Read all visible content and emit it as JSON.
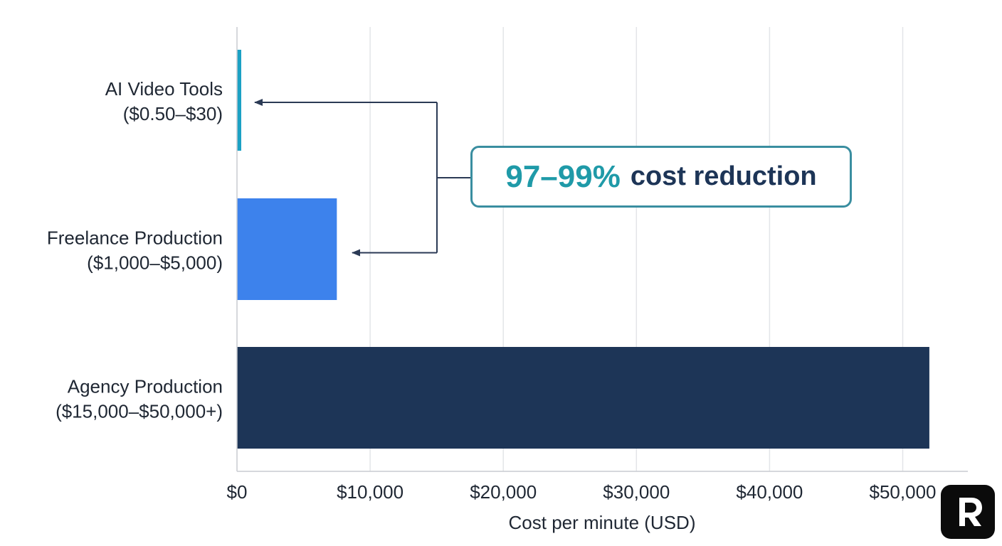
{
  "chart_data": {
    "type": "bar",
    "orientation": "horizontal",
    "categories": [
      "AI Video Tools\n($0.50–$30)",
      "Freelance Production\n($1,000–$5,000)",
      "Agency Production\n($15,000–$50,000+)"
    ],
    "values": [
      200,
      7500,
      52000
    ],
    "colors": [
      "#1ba1c4",
      "#3d82ec",
      "#1d3557"
    ],
    "xlabel": "Cost per minute (USD)",
    "xlim": [
      0,
      55000
    ],
    "xticks": [
      0,
      10000,
      20000,
      30000,
      40000,
      50000
    ],
    "xtick_labels": [
      "$0",
      "$10,000",
      "$20,000",
      "$30,000",
      "$40,000",
      "$50,000"
    ],
    "grid": "vertical",
    "annotation": {
      "highlight": "97–99%",
      "text": "cost reduction",
      "arrows_to": [
        "AI Video Tools",
        "Freelance Production"
      ],
      "border_color": "#3a8ea0",
      "highlight_color": "#1f9aa8",
      "text_color": "#1d3557"
    }
  },
  "logo": {
    "icon": "r-logo-icon",
    "background": "#0b0b0b"
  }
}
